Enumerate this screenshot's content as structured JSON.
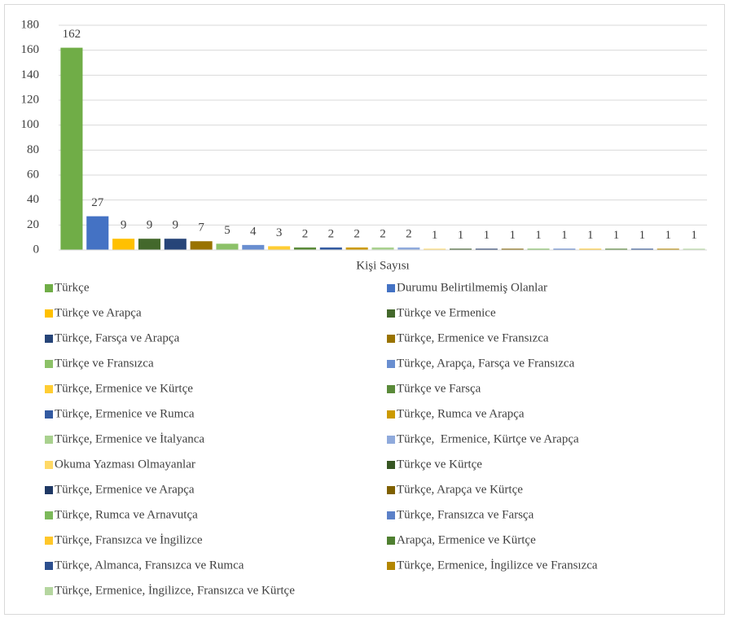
{
  "chart_data": {
    "type": "bar",
    "categories": [
      "Kişi Sayısı"
    ],
    "ylim": [
      0,
      180
    ],
    "yticks": [
      0,
      20,
      40,
      60,
      80,
      100,
      120,
      140,
      160,
      180
    ],
    "grid": true,
    "legend": "bottom",
    "series": [
      {
        "name": "Türkçe",
        "color": "#70ad47",
        "values": [
          162
        ]
      },
      {
        "name": "Durumu Belirtilmemiş Olanlar",
        "color": "#4472c4",
        "values": [
          27
        ]
      },
      {
        "name": "Türkçe ve Arapça",
        "color": "#ffc000",
        "values": [
          9
        ]
      },
      {
        "name": "Türkçe ve Ermenice",
        "color": "#43682b",
        "values": [
          9
        ]
      },
      {
        "name": "Türkçe, Farsça ve Arapça",
        "color": "#264478",
        "values": [
          9
        ]
      },
      {
        "name": "Türkçe, Ermenice ve Fransızca",
        "color": "#997300",
        "values": [
          7
        ]
      },
      {
        "name": "Türkçe ve Fransızca",
        "color": "#8cc168",
        "values": [
          5
        ]
      },
      {
        "name": "Türkçe, Arapça, Farsça ve Fransızca",
        "color": "#698ed0",
        "values": [
          4
        ]
      },
      {
        "name": "Türkçe, Ermenice ve Kürtçe",
        "color": "#ffcd33",
        "values": [
          3
        ]
      },
      {
        "name": "Türkçe ve Farsça",
        "color": "#5a8a39",
        "values": [
          2
        ]
      },
      {
        "name": "Türkçe, Ermenice ve Rumca",
        "color": "#335aa1",
        "values": [
          2
        ]
      },
      {
        "name": "Türkçe, Rumca ve Arapça",
        "color": "#cc9a00",
        "values": [
          2
        ]
      },
      {
        "name": "Türkçe, Ermenice ve İtalyanca",
        "color": "#a9d18e",
        "values": [
          2
        ]
      },
      {
        "name": "Türkçe,  Ermenice, Kürtçe ve Arapça",
        "color": "#8faadc",
        "values": [
          2
        ]
      },
      {
        "name": "Okuma Yazması Olmayanlar",
        "color": "#ffd966",
        "values": [
          1
        ]
      },
      {
        "name": "Türkçe ve Kürtçe",
        "color": "#375623",
        "values": [
          1
        ]
      },
      {
        "name": "Türkçe, Ermenice ve Arapça",
        "color": "#1f3864",
        "values": [
          1
        ]
      },
      {
        "name": "Türkçe, Arapça ve Kürtçe",
        "color": "#7f6000",
        "values": [
          1
        ]
      },
      {
        "name": "Türkçe, Rumca ve Arnavutça",
        "color": "#7cb95a",
        "values": [
          1
        ]
      },
      {
        "name": "Türkçe, Fransızca ve Farsça",
        "color": "#5b80c8",
        "values": [
          1
        ]
      },
      {
        "name": "Türkçe, Fransızca ve İngilizce",
        "color": "#ffc72a",
        "values": [
          1
        ]
      },
      {
        "name": "Arapça, Ermenice ve Kürtçe",
        "color": "#4f7f30",
        "values": [
          1
        ]
      },
      {
        "name": "Türkçe, Almanca, Fransızca ve Rumca",
        "color": "#2c4f8e",
        "values": [
          1
        ]
      },
      {
        "name": "Türkçe, Ermenice, İngilizce ve Fransızca",
        "color": "#b38600",
        "values": [
          1
        ]
      },
      {
        "name": "Türkçe, Ermenice, İngilizce, Fransızca ve Kürtçe",
        "color": "#b5d6a0",
        "values": [
          1
        ]
      }
    ]
  }
}
